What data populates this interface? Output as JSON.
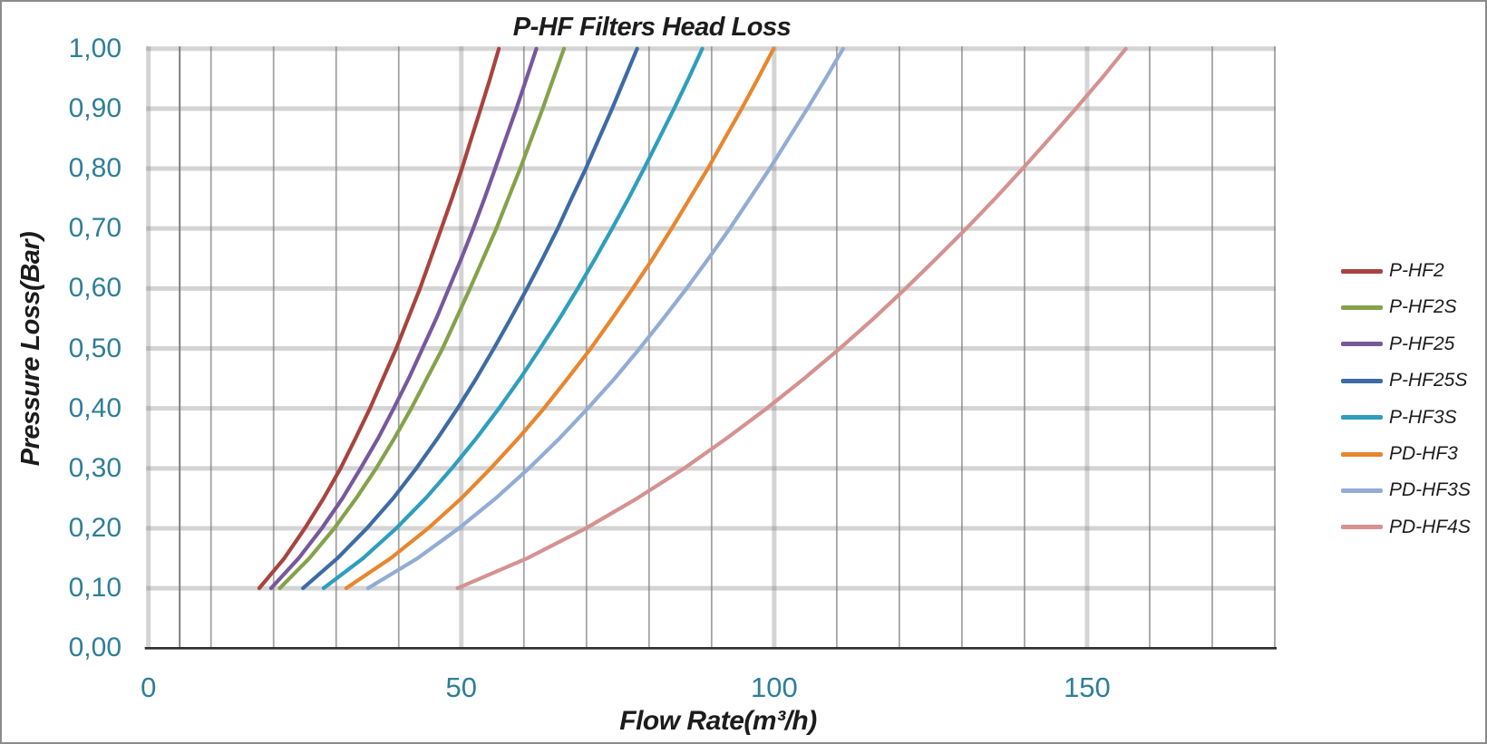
{
  "window": {
    "background": "#FFFFFF",
    "border_color": "#8B8B8B"
  },
  "chart_data": {
    "type": "line",
    "title": "P-HF Filters Head Loss",
    "xlabel": "Flow Rate(m³/h)",
    "ylabel": "Pressure Loss(Bar)",
    "xlim": [
      0,
      180
    ],
    "ylim": [
      0.0,
      1.0
    ],
    "grid": true,
    "legend_position": "right-middle",
    "x_major_ticks": [
      0,
      50,
      100,
      150
    ],
    "x_minor_step": 10,
    "x_extra_minor_gridline": 5,
    "y_major_step": 0.1,
    "pressures_bar": [
      0.1,
      0.15,
      0.2,
      0.25,
      0.3,
      0.35,
      0.4,
      0.45,
      0.5,
      0.55,
      0.6,
      0.65,
      0.7,
      0.75,
      0.8,
      0.85,
      0.9,
      0.95,
      1.0
    ],
    "series": [
      {
        "name": "P-HF2",
        "color": "#A8433E",
        "flows_m3h": [
          17.7,
          21.7,
          25.0,
          28.0,
          30.7,
          33.1,
          35.4,
          37.5,
          39.6,
          41.5,
          43.4,
          45.1,
          46.8,
          48.5,
          50.1,
          51.6,
          53.1,
          54.6,
          56.0
        ]
      },
      {
        "name": "P-HF2S",
        "color": "#85A24B",
        "flows_m3h": [
          21.0,
          25.7,
          29.7,
          33.2,
          36.4,
          39.3,
          42.0,
          44.5,
          47.0,
          49.2,
          51.4,
          53.5,
          55.6,
          57.5,
          59.4,
          61.2,
          63.0,
          64.7,
          66.4
        ]
      },
      {
        "name": "P-HF25",
        "color": "#77589D",
        "flows_m3h": [
          19.6,
          24.0,
          27.7,
          31.0,
          33.9,
          36.7,
          39.2,
          41.6,
          43.8,
          46.0,
          48.0,
          50.0,
          51.9,
          53.7,
          55.4,
          57.1,
          58.8,
          60.4,
          62.0
        ]
      },
      {
        "name": "P-HF25S",
        "color": "#3D6BA5",
        "flows_m3h": [
          24.7,
          30.2,
          34.9,
          39.1,
          42.8,
          46.2,
          49.4,
          52.4,
          55.2,
          57.9,
          60.5,
          63.0,
          65.4,
          67.6,
          69.9,
          72.0,
          74.1,
          76.1,
          78.1
        ]
      },
      {
        "name": "P-HF3S",
        "color": "#2E9EBD",
        "flows_m3h": [
          28.0,
          34.3,
          39.6,
          44.3,
          48.5,
          52.4,
          56.0,
          59.4,
          62.6,
          65.7,
          68.6,
          71.4,
          74.1,
          76.7,
          79.2,
          81.6,
          84.0,
          86.3,
          88.5
        ]
      },
      {
        "name": "PD-HF3",
        "color": "#E8862F",
        "flows_m3h": [
          31.6,
          38.7,
          44.7,
          50.0,
          54.7,
          59.1,
          63.2,
          67.0,
          70.7,
          74.1,
          77.4,
          80.6,
          83.6,
          86.5,
          89.4,
          92.1,
          94.8,
          97.4,
          99.9
        ]
      },
      {
        "name": "PD-HF3S",
        "color": "#92ACD5",
        "flows_m3h": [
          35.1,
          43.0,
          49.6,
          55.5,
          60.8,
          65.7,
          70.2,
          74.5,
          78.5,
          82.3,
          86.0,
          89.5,
          92.9,
          96.1,
          99.3,
          102.3,
          105.3,
          108.2,
          111.0
        ]
      },
      {
        "name": "PD-HF4S",
        "color": "#D49290",
        "flows_m3h": [
          49.4,
          60.5,
          69.9,
          78.1,
          85.6,
          92.4,
          98.8,
          104.8,
          110.5,
          115.9,
          121.0,
          125.9,
          130.7,
          135.3,
          139.7,
          144.0,
          148.2,
          152.3,
          156.2
        ]
      }
    ]
  },
  "axes": {
    "y_tick_labels": [
      "0,00",
      "0,10",
      "0,20",
      "0,30",
      "0,40",
      "0,50",
      "0,60",
      "0,70",
      "0,80",
      "0,90",
      "1,00"
    ],
    "x_tick_labels": [
      "0",
      "50",
      "100",
      "150"
    ],
    "x_tick_values": [
      0,
      50,
      100,
      150
    ]
  },
  "colors": {
    "tick_label": "#2E7E97",
    "title_text": "#1C1C1C",
    "grid_major": "rgba(125,125,125,0.33)",
    "grid_minor": "#A3A3A3",
    "grid_accent": "#73737A",
    "axis_line": "#2E2E2E"
  }
}
